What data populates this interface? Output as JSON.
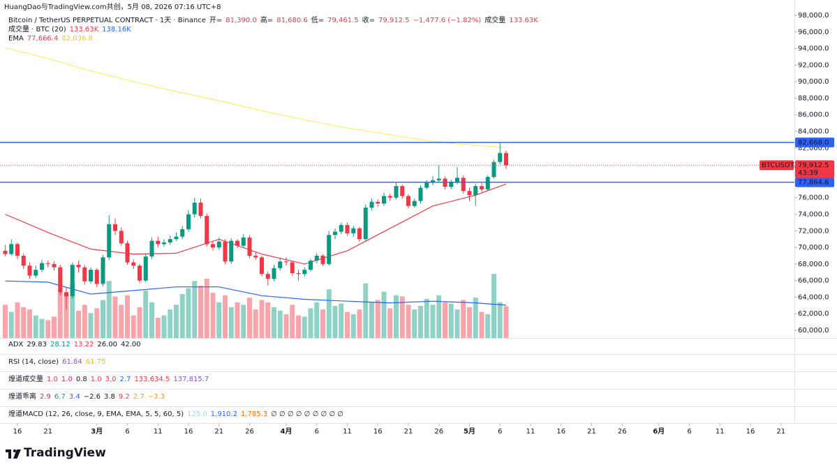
{
  "header": {
    "credit": "HuangDao与TradingView.com共创，5月 08, 2026 07:16 UTC+8"
  },
  "legend": [
    [
      {
        "text": "Bitcoin / TetherUS PERPETUAL CONTRACT · 1天 · Binance",
        "color": "#131722"
      },
      {
        "text": "开=",
        "color": "#131722"
      },
      {
        "text": "81,390.0",
        "color": "#f23645"
      },
      {
        "text": "高=",
        "color": "#131722"
      },
      {
        "text": "81,680.6",
        "color": "#f23645"
      },
      {
        "text": "低=",
        "color": "#131722"
      },
      {
        "text": "79,461.5",
        "color": "#f23645"
      },
      {
        "text": "收=",
        "color": "#131722"
      },
      {
        "text": "79,912.5",
        "color": "#f23645"
      },
      {
        "text": "−1,477.6 (−1.82%)",
        "color": "#f23645"
      },
      {
        "text": "成交量",
        "color": "#131722"
      },
      {
        "text": "133.63K",
        "color": "#f23645"
      }
    ],
    [
      {
        "text": "成交量 · BTC (20)",
        "color": "#131722"
      },
      {
        "text": "133.63K",
        "color": "#f23645"
      },
      {
        "text": "138.16K",
        "color": "#2962ff"
      }
    ],
    [
      {
        "text": "EMA",
        "color": "#131722"
      },
      {
        "text": "77,666.4",
        "color": "#f23645"
      },
      {
        "text": "82,036.8",
        "color": "#e6d200"
      }
    ]
  ],
  "indicators": [
    [
      {
        "text": "ADX",
        "color": "#131722"
      },
      {
        "text": "29.83",
        "color": "#131722"
      },
      {
        "text": "28.12",
        "color": "#089981"
      },
      {
        "text": "13.22",
        "color": "#f23645"
      },
      {
        "text": "26.00",
        "color": "#131722"
      },
      {
        "text": "42.00",
        "color": "#131722"
      }
    ],
    [
      {
        "text": "RSI (14, close)",
        "color": "#131722"
      },
      {
        "text": "61.84",
        "color": "#7e57c2"
      },
      {
        "text": "61.75",
        "color": "#e6c200"
      }
    ],
    [
      {
        "text": "煌道成交量",
        "color": "#131722"
      },
      {
        "text": "1.0",
        "color": "#f23645"
      },
      {
        "text": "1.0",
        "color": "#e91e63"
      },
      {
        "text": "0.8",
        "color": "#131722"
      },
      {
        "text": "1.0",
        "color": "#f23645"
      },
      {
        "text": "3.0",
        "color": "#f23645"
      },
      {
        "text": "2.7",
        "color": "#2962ff"
      },
      {
        "text": "133,634.5",
        "color": "#f23645"
      },
      {
        "text": "137,815.7",
        "color": "#7e57c2"
      }
    ],
    [
      {
        "text": "煌道乖离",
        "color": "#131722"
      },
      {
        "text": "2.9",
        "color": "#e91e63"
      },
      {
        "text": "6.7",
        "color": "#089981"
      },
      {
        "text": "3.4",
        "color": "#2962ff"
      },
      {
        "text": "−2.6",
        "color": "#131722"
      },
      {
        "text": "3.8",
        "color": "#131722"
      },
      {
        "text": "9.2",
        "color": "#f23645"
      },
      {
        "text": "2.7",
        "color": "#ff9800"
      },
      {
        "text": "−3.3",
        "color": "#ff9800"
      }
    ],
    [
      {
        "text": "煌道MACD (12, 26, close, 9, EMA, EMA, 5, 5, 60, 5)",
        "color": "#131722"
      },
      {
        "text": "125.0",
        "color": "#9fd6e3"
      },
      {
        "text": "1,910.2",
        "color": "#2962ff"
      },
      {
        "text": "1,785.3",
        "color": "#ff6d00"
      },
      {
        "text": "∅ ∅ ∅ ∅ ∅ ∅ ∅ ∅ ∅",
        "color": "#131722"
      }
    ]
  ],
  "footer": {
    "brand": "TradingView"
  },
  "chart_data": {
    "type": "candlestick",
    "symbol": "BTCUSDT.P",
    "countdown": "43:39",
    "up_color": "#089981",
    "down_color": "#f23645",
    "x": [
      "02-14",
      "02-15",
      "02-16",
      "02-17",
      "02-18",
      "02-19",
      "02-20",
      "02-21",
      "02-22",
      "02-23",
      "02-24",
      "02-25",
      "02-26",
      "02-27",
      "02-28",
      "03-01",
      "03-02",
      "03-03",
      "03-04",
      "03-05",
      "03-06",
      "03-07",
      "03-08",
      "03-09",
      "03-10",
      "03-11",
      "03-12",
      "03-13",
      "03-14",
      "03-15",
      "03-16",
      "03-17",
      "03-18",
      "03-19",
      "03-20",
      "03-21",
      "03-22",
      "03-23",
      "03-24",
      "03-25",
      "03-26",
      "03-27",
      "03-28",
      "03-29",
      "03-30",
      "03-31",
      "04-01",
      "04-02",
      "04-03",
      "04-04",
      "04-05",
      "04-06",
      "04-07",
      "04-08",
      "04-09",
      "04-10",
      "04-11",
      "04-12",
      "04-13",
      "04-14",
      "04-15",
      "04-16",
      "04-17",
      "04-18",
      "04-19",
      "04-20",
      "04-21",
      "04-22",
      "04-23",
      "04-24",
      "04-25",
      "04-26",
      "04-27",
      "04-28",
      "04-29",
      "04-30",
      "05-01",
      "05-02",
      "05-03",
      "05-04",
      "05-05",
      "05-06",
      "05-07"
    ],
    "open": [
      69600,
      69200,
      70400,
      69000,
      67800,
      66600,
      67300,
      68100,
      68000,
      67600,
      64600,
      64100,
      67900,
      67600,
      65900,
      67300,
      65600,
      68800,
      72800,
      72000,
      70500,
      68200,
      67800,
      66000,
      68900,
      70800,
      70400,
      70600,
      71000,
      71300,
      72200,
      74000,
      75400,
      73800,
      70400,
      70000,
      70700,
      68300,
      70800,
      70200,
      71200,
      69000,
      68800,
      66800,
      66200,
      67500,
      68300,
      68200,
      66900,
      66800,
      67300,
      68400,
      69000,
      68000,
      71500,
      71900,
      72700,
      71700,
      72300,
      71000,
      74800,
      75500,
      75300,
      76200,
      76000,
      77400,
      76200,
      75000,
      75600,
      77200,
      77800,
      78100,
      78300,
      77300,
      77900,
      78400,
      76800,
      76300,
      77400,
      77000,
      78500,
      80300,
      81390
    ],
    "high": [
      70300,
      71000,
      70600,
      69300,
      68200,
      67800,
      68500,
      68400,
      68300,
      67900,
      65200,
      68200,
      68400,
      67900,
      67600,
      67500,
      69100,
      73900,
      73500,
      72400,
      70800,
      68600,
      68000,
      69300,
      71200,
      71300,
      71000,
      71400,
      71800,
      72600,
      74500,
      76000,
      75900,
      74100,
      70800,
      71200,
      71000,
      71100,
      71000,
      71600,
      71500,
      69500,
      69000,
      67100,
      67900,
      68700,
      68800,
      68400,
      67300,
      67600,
      68600,
      69300,
      69200,
      72000,
      72300,
      73000,
      73000,
      72600,
      72500,
      75200,
      75900,
      75800,
      76600,
      76500,
      77800,
      77600,
      76400,
      75900,
      77500,
      78100,
      78600,
      79900,
      78600,
      78200,
      79700,
      78700,
      77200,
      77700,
      77800,
      78700,
      80600,
      82700,
      81680.6
    ],
    "low": [
      68900,
      69000,
      68600,
      67400,
      66200,
      66300,
      67000,
      67600,
      67200,
      64200,
      62500,
      63800,
      67000,
      65500,
      65600,
      65200,
      65300,
      68500,
      71500,
      70200,
      67900,
      67400,
      65700,
      65800,
      68600,
      70000,
      70100,
      70300,
      70800,
      71000,
      71900,
      73600,
      73500,
      70100,
      69600,
      69700,
      68000,
      68000,
      69900,
      70000,
      68700,
      68500,
      66500,
      65400,
      65900,
      67200,
      67800,
      66600,
      66000,
      66500,
      67100,
      68100,
      67800,
      67800,
      71000,
      71600,
      71400,
      71300,
      70700,
      70800,
      74500,
      74900,
      75000,
      75600,
      75800,
      75900,
      74700,
      74800,
      75300,
      77000,
      77500,
      77900,
      77000,
      77000,
      77600,
      76500,
      75600,
      75000,
      76700,
      76800,
      78300,
      80000,
      79461.5
    ],
    "close": [
      69200,
      70400,
      69000,
      67800,
      66600,
      67300,
      68100,
      68000,
      67600,
      64600,
      64100,
      67900,
      67600,
      65900,
      67300,
      65600,
      68800,
      72800,
      72000,
      70500,
      68200,
      67800,
      66000,
      68900,
      70800,
      70400,
      70600,
      71000,
      71300,
      72200,
      74000,
      75400,
      73800,
      70400,
      70000,
      70700,
      68300,
      70800,
      70200,
      71200,
      69000,
      68800,
      66800,
      66200,
      67500,
      68300,
      68200,
      66900,
      66800,
      67300,
      68400,
      69000,
      68000,
      71500,
      71900,
      72700,
      71700,
      72300,
      71000,
      74800,
      75500,
      75300,
      76200,
      76000,
      77400,
      76200,
      75000,
      75600,
      77200,
      77800,
      78100,
      78300,
      77300,
      77900,
      78400,
      76800,
      76300,
      77400,
      77000,
      78500,
      80300,
      81390,
      79912.5
    ],
    "volume": [
      140,
      110,
      150,
      130,
      120,
      95,
      80,
      75,
      90,
      200,
      190,
      235,
      115,
      140,
      105,
      125,
      160,
      240,
      175,
      140,
      180,
      95,
      130,
      200,
      150,
      85,
      95,
      120,
      140,
      185,
      210,
      240,
      220,
      250,
      190,
      150,
      180,
      130,
      150,
      140,
      170,
      120,
      160,
      150,
      130,
      115,
      100,
      140,
      95,
      90,
      125,
      150,
      120,
      205,
      135,
      145,
      110,
      100,
      120,
      230,
      150,
      160,
      195,
      125,
      180,
      175,
      140,
      120,
      135,
      165,
      140,
      180,
      150,
      145,
      120,
      160,
      130,
      170,
      110,
      100,
      270,
      150,
      133.63
    ],
    "lines": [
      {
        "color": "#f5f06a",
        "x": [
          "02-14",
          "02-21",
          "02-28",
          "03-07",
          "03-14",
          "03-21",
          "03-28",
          "04-04",
          "04-11",
          "04-18",
          "04-25",
          "05-02",
          "05-07"
        ],
        "values": [
          94100,
          92800,
          91300,
          90000,
          88800,
          87700,
          86500,
          85400,
          84400,
          83600,
          82800,
          82300,
          82036.8
        ]
      },
      {
        "color": "#f23645",
        "x": [
          "02-14",
          "02-21",
          "02-28",
          "03-07",
          "03-14",
          "03-21",
          "03-28",
          "04-04",
          "04-11",
          "04-18",
          "04-25",
          "05-02",
          "05-07"
        ],
        "values": [
          74000,
          71800,
          69800,
          69200,
          69300,
          71000,
          69200,
          68000,
          69600,
          72300,
          75000,
          76300,
          77666.4
        ]
      },
      {
        "color": "#2962ff",
        "axis": "volume",
        "x": [
          "02-14",
          "02-21",
          "02-28",
          "03-07",
          "03-14",
          "03-21",
          "03-28",
          "04-04",
          "04-11",
          "04-18",
          "04-25",
          "05-02",
          "05-07"
        ],
        "values": [
          240,
          235,
          185,
          200,
          215,
          215,
          178,
          163,
          155,
          148,
          155,
          148,
          138.16
        ]
      }
    ],
    "hlines": [
      {
        "value": 82668.0,
        "label": "82,668.0",
        "color": "#2962ff"
      },
      {
        "value": 77864.6,
        "label": "77,864.6",
        "color": "#2962ff"
      }
    ],
    "last_price": {
      "value": 79912.5,
      "label": "79,912.5",
      "color": "#f23645"
    },
    "ylim": [
      59075,
      99850
    ],
    "yticks": [
      {
        "value": 60000,
        "label": "60,000.0"
      },
      {
        "value": 62000,
        "label": "62,000.0"
      },
      {
        "value": 64000,
        "label": "64,000.0"
      },
      {
        "value": 66000,
        "label": "66,000.0"
      },
      {
        "value": 68000,
        "label": "68,000.0"
      },
      {
        "value": 70000,
        "label": "70,000.0"
      },
      {
        "value": 72000,
        "label": "72,000.0"
      },
      {
        "value": 74000,
        "label": "74,000.0"
      },
      {
        "value": 76000,
        "label": "76,000.0"
      },
      {
        "value": 78000,
        "label": "78,000.0"
      },
      {
        "value": 80000,
        "label": "80,000.0"
      },
      {
        "value": 82000,
        "label": "82,000.0"
      },
      {
        "value": 84000,
        "label": "84,000.0"
      },
      {
        "value": 86000,
        "label": "86,000.0"
      },
      {
        "value": 88000,
        "label": "88,000.0"
      },
      {
        "value": 90000,
        "label": "90,000.0"
      },
      {
        "value": 92000,
        "label": "92,000.0"
      },
      {
        "value": 94000,
        "label": "94,000.0"
      },
      {
        "value": 96000,
        "label": "96,000.0"
      },
      {
        "value": 98000,
        "label": "98,000.0"
      }
    ],
    "xticks": [
      {
        "value": "02-16",
        "label": "16"
      },
      {
        "value": "02-21",
        "label": "21"
      },
      {
        "value": "03-01",
        "label": "3月"
      },
      {
        "value": "03-06",
        "label": "6"
      },
      {
        "value": "03-11",
        "label": "11"
      },
      {
        "value": "03-16",
        "label": "16"
      },
      {
        "value": "03-21",
        "label": "21"
      },
      {
        "value": "03-26",
        "label": "26"
      },
      {
        "value": "04-01",
        "label": "4月"
      },
      {
        "value": "04-06",
        "label": "6"
      },
      {
        "value": "04-11",
        "label": "11"
      },
      {
        "value": "04-16",
        "label": "16"
      },
      {
        "value": "04-21",
        "label": "21"
      },
      {
        "value": "04-26",
        "label": "26"
      },
      {
        "value": "05-01",
        "label": "5月"
      },
      {
        "value": "05-06",
        "label": "6"
      },
      {
        "value": "05-11",
        "label": "11"
      },
      {
        "value": "05-16",
        "label": "16"
      },
      {
        "value": "05-21",
        "label": "21"
      },
      {
        "value": "05-26",
        "label": "26"
      },
      {
        "value": "06-01",
        "label": "6月"
      },
      {
        "value": "06-06",
        "label": "6"
      },
      {
        "value": "06-11",
        "label": "11"
      },
      {
        "value": "06-16",
        "label": "16"
      },
      {
        "value": "06-21",
        "label": "21"
      }
    ]
  }
}
